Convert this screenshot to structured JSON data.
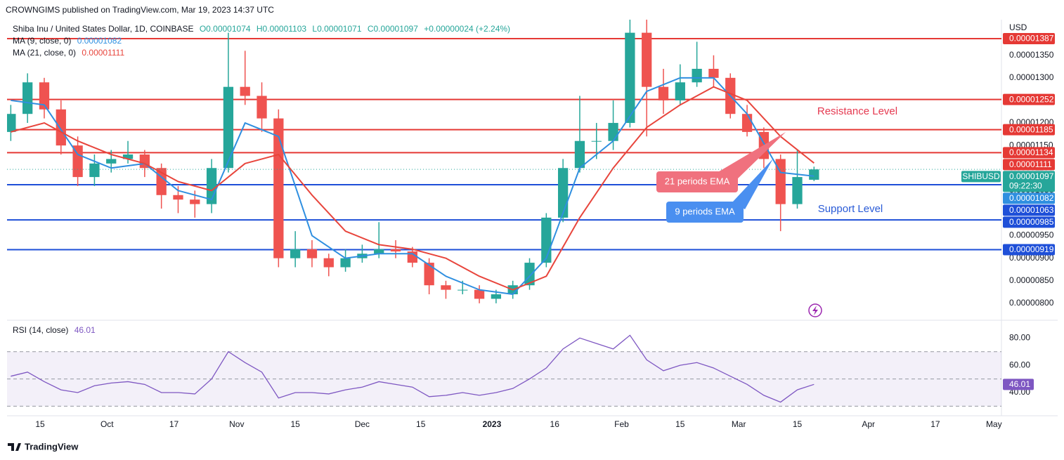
{
  "header": "CROWNGIMS published on TradingView.com, Mar 19, 2023 14:37 UTC",
  "footer": "TradingView",
  "chart_data": {
    "type": "candlestick",
    "title": "Shiba Inu / United States Dollar, 1D, COINBASE",
    "ohlc": [
      "O0.00001074",
      "H0.00001103",
      "L0.00001071",
      "C0.00001097",
      "+0.00000024 (+2.24%)"
    ],
    "currency": "USD",
    "symbol": "SHIBUSD",
    "countdown": "09:22:30",
    "up_color": "#26a69a",
    "down_color": "#ef5350",
    "x": [
      7,
      11,
      15,
      19,
      23,
      27,
      31,
      35,
      39,
      43,
      47,
      51,
      55,
      59,
      63,
      67,
      71,
      75,
      79,
      83,
      87,
      91,
      95,
      99,
      103,
      107,
      111,
      115,
      119,
      123,
      127,
      131,
      135,
      139,
      143,
      147,
      151,
      155,
      159,
      163,
      167,
      171,
      175,
      179,
      183,
      187,
      191,
      195,
      199
    ],
    "open": [
      1.18e-05,
      1.22e-05,
      1.29e-05,
      1.23e-05,
      1.15e-05,
      1.08e-05,
      1.11e-05,
      1.12e-05,
      1.13e-05,
      1.1e-05,
      1.04e-05,
      1.03e-05,
      1.02e-05,
      1.1e-05,
      1.28e-05,
      1.26e-05,
      1.21e-05,
      9e-06,
      9.2e-06,
      9e-06,
      8.8e-06,
      9e-06,
      9.1e-06,
      9.2e-06,
      9.15e-06,
      8.9e-06,
      8.4e-06,
      8.3e-06,
      8.3e-06,
      8.1e-06,
      8.2e-06,
      8.4e-06,
      8.9e-06,
      9.9e-06,
      1.1e-05,
      1.16e-05,
      1.16e-05,
      1.2e-05,
      1.4e-05,
      1.28e-05,
      1.25e-05,
      1.29e-05,
      1.32e-05,
      1.3e-05,
      1.22e-05,
      1.18e-05,
      1.12e-05,
      1.02e-05,
      1.074e-05
    ],
    "high": [
      1.24e-05,
      1.31e-05,
      1.3e-05,
      1.25e-05,
      1.17e-05,
      1.13e-05,
      1.14e-05,
      1.16e-05,
      1.14e-05,
      1.11e-05,
      1.06e-05,
      1.05e-05,
      1.12e-05,
      1.4e-05,
      1.36e-05,
      1.29e-05,
      1.23e-05,
      9.6e-06,
      9.4e-06,
      9.1e-06,
      9.2e-06,
      9.3e-06,
      9.8e-06,
      9.4e-06,
      9.25e-06,
      9e-06,
      8.5e-06,
      8.5e-06,
      8.4e-06,
      8.3e-06,
      8.5e-06,
      9e-06,
      1e-05,
      1.12e-05,
      1.26e-05,
      1.2e-05,
      1.25e-05,
      1.44e-05,
      1.43e-05,
      1.32e-05,
      1.33e-05,
      1.38e-05,
      1.35e-05,
      1.31e-05,
      1.24e-05,
      1.19e-05,
      1.13e-05,
      1.14e-05,
      1.103e-05
    ],
    "low": [
      1.16e-05,
      1.2e-05,
      1.21e-05,
      1.13e-05,
      1.06e-05,
      1.06e-05,
      1.09e-05,
      1.11e-05,
      1.08e-05,
      1.01e-05,
      1e-05,
      9.9e-06,
      1e-05,
      1.09e-05,
      1.24e-05,
      1.18e-05,
      8.8e-06,
      8.8e-06,
      8.8e-06,
      8.6e-06,
      8.7e-06,
      8.9e-06,
      9e-06,
      9e-06,
      8.8e-06,
      8.2e-06,
      8.1e-06,
      8.2e-06,
      8e-06,
      8e-06,
      8.1e-06,
      8.3e-06,
      8.8e-06,
      9.8e-06,
      1.09e-05,
      1.12e-05,
      1.14e-05,
      1.19e-05,
      1.17e-05,
      1.22e-05,
      1.24e-05,
      1.28e-05,
      1.28e-05,
      1.21e-05,
      1.17e-05,
      1.1e-05,
      9.6e-06,
      1.01e-05,
      1.071e-05
    ],
    "close": [
      1.22e-05,
      1.29e-05,
      1.23e-05,
      1.15e-05,
      1.08e-05,
      1.11e-05,
      1.12e-05,
      1.13e-05,
      1.1e-05,
      1.04e-05,
      1.03e-05,
      1.02e-05,
      1.1e-05,
      1.28e-05,
      1.26e-05,
      1.21e-05,
      9e-06,
      9.2e-06,
      9e-06,
      8.8e-06,
      9e-06,
      9.1e-06,
      9.2e-06,
      9.15e-06,
      8.9e-06,
      8.4e-06,
      8.3e-06,
      8.3e-06,
      8.1e-06,
      8.2e-06,
      8.4e-06,
      8.9e-06,
      9.9e-06,
      1.1e-05,
      1.16e-05,
      1.16e-05,
      1.2e-05,
      1.4e-05,
      1.28e-05,
      1.25e-05,
      1.29e-05,
      1.32e-05,
      1.3e-05,
      1.22e-05,
      1.18e-05,
      1.12e-05,
      1.02e-05,
      1.08e-05,
      1.097e-05
    ],
    "xlim": [
      6.1,
      243.8
    ],
    "xticks": [
      {
        "value": 14,
        "label": "15"
      },
      {
        "value": 30,
        "label": "Oct"
      },
      {
        "value": 46,
        "label": "17"
      },
      {
        "value": 61,
        "label": "Nov"
      },
      {
        "value": 75,
        "label": "15"
      },
      {
        "value": 91,
        "label": "Dec"
      },
      {
        "value": 105,
        "label": "15"
      },
      {
        "value": 122,
        "label": "2023"
      },
      {
        "value": 137,
        "label": "16"
      },
      {
        "value": 153,
        "label": "Feb"
      },
      {
        "value": 167,
        "label": "15"
      },
      {
        "value": 181,
        "label": "Mar"
      },
      {
        "value": 195,
        "label": "15"
      },
      {
        "value": 212,
        "label": "Apr"
      },
      {
        "value": 228,
        "label": "17"
      },
      {
        "value": 242,
        "label": "May"
      }
    ],
    "ylim": [
      7.64e-06,
      1.429e-05
    ],
    "yticks": [
      {
        "value": 8e-06,
        "label": "0.00000800"
      },
      {
        "value": 8.5e-06,
        "label": "0.00000850"
      },
      {
        "value": 9e-06,
        "label": "0.00000900"
      },
      {
        "value": 9.5e-06,
        "label": "0.00000950"
      },
      {
        "value": 1e-05,
        "label": "0.00001000"
      },
      {
        "value": 1.05e-05,
        "label": "0.00001050"
      },
      {
        "value": 1.1e-05,
        "label": "0.00001100"
      },
      {
        "value": 1.15e-05,
        "label": "0.00001150"
      },
      {
        "value": 1.2e-05,
        "label": "0.00001200"
      },
      {
        "value": 1.25e-05,
        "label": "0.00001250"
      },
      {
        "value": 1.3e-05,
        "label": "0.00001300"
      },
      {
        "value": 1.35e-05,
        "label": "0.00001350"
      }
    ],
    "series": [
      {
        "name": "MA (9, close, 0)",
        "legend_value": "0.00001082",
        "color": "#2f8fe0",
        "x": [
          7,
          15,
          23,
          31,
          39,
          47,
          55,
          63,
          71,
          79,
          87,
          95,
          103,
          111,
          119,
          127,
          135,
          143,
          151,
          159,
          167,
          175,
          183,
          191,
          199
        ],
        "values": [
          1.25e-05,
          1.24e-05,
          1.13e-05,
          1.1e-05,
          1.11e-05,
          1.05e-05,
          1.03e-05,
          1.2e-05,
          1.17e-05,
          9.5e-06,
          9e-06,
          9.1e-06,
          9.1e-06,
          8.6e-06,
          8.3e-06,
          8.2e-06,
          9e-06,
          1.1e-05,
          1.16e-05,
          1.27e-05,
          1.3e-05,
          1.3e-05,
          1.22e-05,
          1.09e-05,
          1.082e-05
        ]
      },
      {
        "name": "MA (21, close, 0)",
        "legend_value": "0.00001111",
        "color": "#e8453c",
        "x": [
          7,
          15,
          23,
          31,
          39,
          47,
          55,
          63,
          71,
          79,
          87,
          95,
          103,
          111,
          119,
          127,
          135,
          143,
          151,
          159,
          167,
          175,
          183,
          191,
          199
        ],
        "values": [
          1.18e-05,
          1.2e-05,
          1.16e-05,
          1.13e-05,
          1.11e-05,
          1.07e-05,
          1.05e-05,
          1.11e-05,
          1.13e-05,
          1.04e-05,
          9.6e-06,
          9.3e-06,
          9.2e-06,
          9e-06,
          8.6e-06,
          8.3e-06,
          8.6e-06,
          9.9e-06,
          1.1e-05,
          1.19e-05,
          1.24e-05,
          1.28e-05,
          1.25e-05,
          1.17e-05,
          1.111e-05
        ]
      }
    ],
    "levels": [
      {
        "value": 1.387e-05,
        "label": "0.00001387",
        "color": "#e53935",
        "line": true
      },
      {
        "value": 1.252e-05,
        "label": "0.00001252",
        "color": "#e53935",
        "line": true
      },
      {
        "value": 1.185e-05,
        "label": "0.00001185",
        "color": "#e53935",
        "line": true
      },
      {
        "value": 1.134e-05,
        "label": "0.00001134",
        "color": "#e53935",
        "line": true
      },
      {
        "value": 1.111e-05,
        "label": "0.00001111",
        "color": "#e53935",
        "line": false
      },
      {
        "value": 1.097e-05,
        "label": "0.00001097",
        "color": "#26a69a",
        "line": false
      },
      {
        "value": 1.082e-05,
        "label": "0.00001082",
        "color": "#2f8fe0",
        "line": false
      },
      {
        "value": 1.063e-05,
        "label": "0.00001063",
        "color": "#1e4fd8",
        "line": true
      },
      {
        "value": 9.85e-06,
        "label": "0.00000985",
        "color": "#1e4fd8",
        "line": true
      },
      {
        "value": 9.19e-06,
        "label": "0.00000919",
        "color": "#1e4fd8",
        "line": true
      }
    ],
    "annotations": [
      {
        "text": "Resistance Level",
        "color": "#e53950"
      },
      {
        "text": "Support Level",
        "color": "#2a5bd7"
      },
      {
        "text": "21 periods EMA",
        "color": "#f0717e"
      },
      {
        "text": "9 periods EMA",
        "color": "#4a8ff0"
      }
    ],
    "rsi": {
      "title": "RSI (14, close)",
      "legend_value": "46.01",
      "value_label": "46.01",
      "color": "#7e57c2",
      "values": [
        52,
        55,
        48,
        42,
        40,
        45,
        47,
        48,
        46,
        40,
        40,
        39,
        50,
        70,
        62,
        55,
        36,
        40,
        40,
        39,
        42,
        44,
        48,
        46,
        44,
        37,
        38,
        40,
        38,
        40,
        43,
        50,
        58,
        72,
        80,
        76,
        72,
        82,
        64,
        56,
        60,
        62,
        58,
        52,
        46,
        38,
        33,
        42,
        46.01
      ],
      "ylim": [
        23,
        92
      ],
      "yticks": [
        {
          "value": 40,
          "label": "40.00"
        },
        {
          "value": 60,
          "label": "60.00"
        },
        {
          "value": 80,
          "label": "80.00"
        }
      ],
      "bands": [
        70,
        50,
        30
      ]
    }
  }
}
